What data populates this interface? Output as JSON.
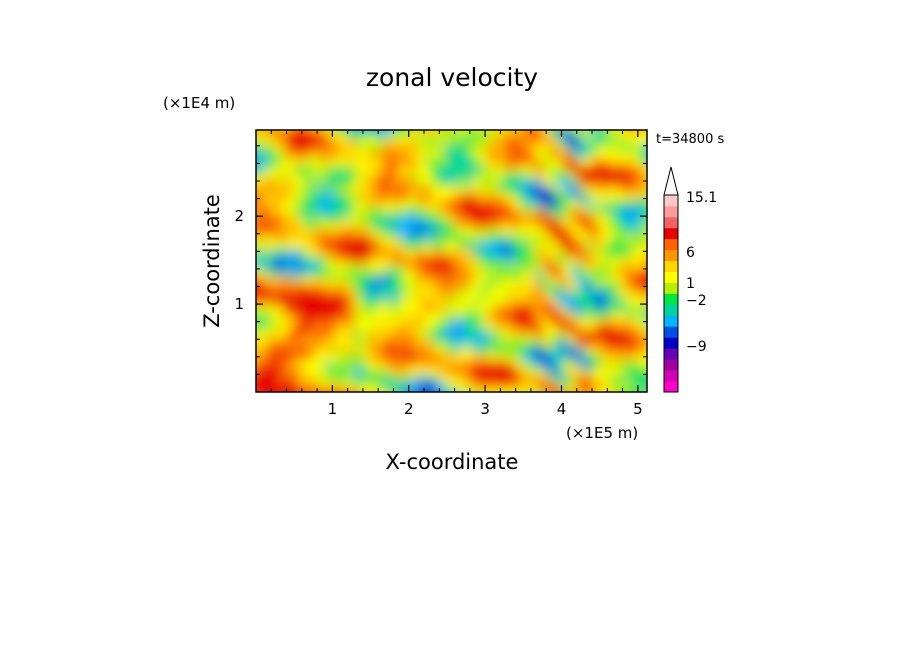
{
  "chart_data": {
    "type": "heatmap",
    "title": "zonal velocity",
    "xlabel": "X-coordinate",
    "ylabel": "Z-coordinate",
    "x_scale_label": "(×1E5 m)",
    "y_scale_label": "(×1E4 m)",
    "time_label": "t=34800 s",
    "xlim": [
      0,
      5.12
    ],
    "ylim": [
      0,
      2.98
    ],
    "x_ticks": [
      "1",
      "2",
      "3",
      "4",
      "5"
    ],
    "y_ticks": [
      "1",
      "2"
    ],
    "colorbar": {
      "labels": [
        "15.1",
        "6",
        "1",
        "-2",
        "-9"
      ],
      "colors": [
        "#ff00c8",
        "#d400b4",
        "#a000a0",
        "#6400b4",
        "#0000c8",
        "#0050e6",
        "#00b4ff",
        "#00d2a0",
        "#00e646",
        "#b4f000",
        "#ffff00",
        "#ffd700",
        "#ff9600",
        "#ff6400",
        "#e60000",
        "#f06464",
        "#ff9b9b",
        "#ffc8c8"
      ],
      "extend": "max"
    }
  }
}
